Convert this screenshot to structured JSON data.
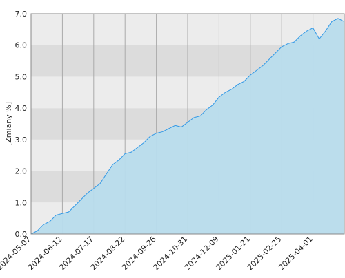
{
  "chart_data": {
    "type": "area",
    "y_label": "[Zmiany %]",
    "categories": [
      "2024-05-07",
      null,
      null,
      null,
      null,
      "2024-06-12",
      null,
      null,
      null,
      null,
      "2024-07-17",
      null,
      null,
      null,
      null,
      "2024-08-22",
      null,
      null,
      null,
      null,
      "2024-09-26",
      null,
      null,
      null,
      null,
      "2024-10-31",
      null,
      null,
      null,
      null,
      "2024-12-09",
      null,
      null,
      null,
      null,
      "2025-01-21",
      null,
      null,
      null,
      null,
      "2025-02-25",
      null,
      null,
      null,
      null,
      "2025-04-01",
      null,
      null,
      null,
      null,
      null
    ],
    "series": [
      {
        "color": "#3399e6",
        "fill": "#b8dcec",
        "values": [
          0.0,
          0.1,
          0.3,
          0.4,
          0.6,
          0.65,
          0.7,
          0.9,
          1.1,
          1.3,
          1.45,
          1.6,
          1.9,
          2.2,
          2.35,
          2.55,
          2.6,
          2.75,
          2.9,
          3.1,
          3.2,
          3.25,
          3.35,
          3.45,
          3.4,
          3.55,
          3.7,
          3.75,
          3.95,
          4.1,
          4.35,
          4.5,
          4.6,
          4.75,
          4.85,
          5.05,
          5.2,
          5.35,
          5.55,
          5.75,
          5.95,
          6.05,
          6.1,
          6.3,
          6.45,
          6.55,
          6.2,
          6.45,
          6.75,
          6.85,
          6.75
        ]
      }
    ],
    "ylim": [
      0,
      7
    ],
    "yticks": [
      {
        "value": 0,
        "label": "0.0"
      },
      {
        "value": 1,
        "label": "1.0"
      },
      {
        "value": 2,
        "label": "2.0"
      },
      {
        "value": 3,
        "label": "3.0"
      },
      {
        "value": 4,
        "label": "4.0"
      },
      {
        "value": 5,
        "label": "5.0"
      },
      {
        "value": 6,
        "label": "6.0"
      },
      {
        "value": 7,
        "label": "7.0"
      }
    ],
    "band_colors": [
      "#ececec",
      "#dcdcdc"
    ],
    "grid": true
  }
}
